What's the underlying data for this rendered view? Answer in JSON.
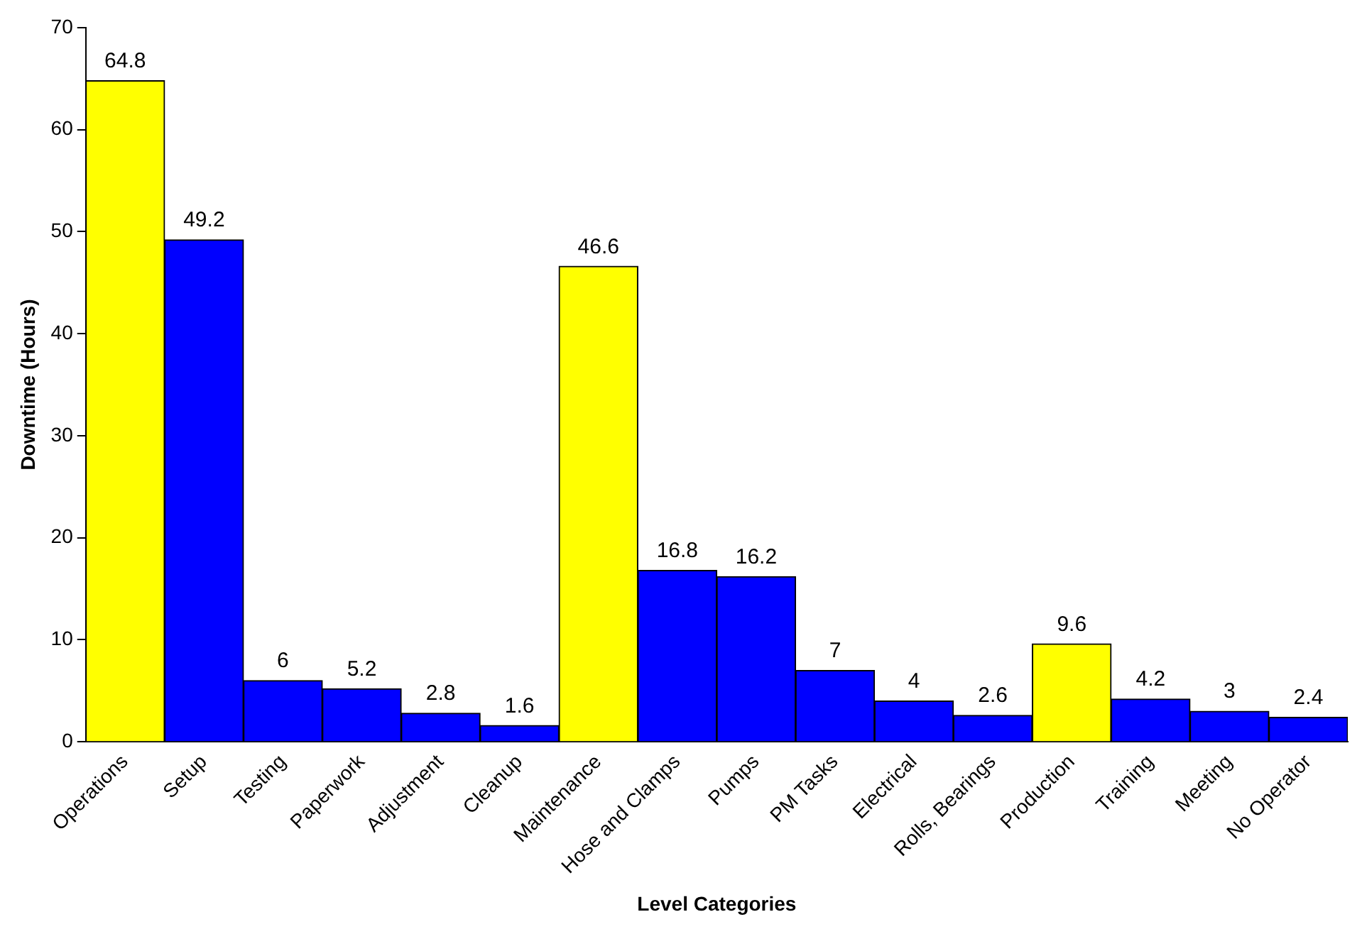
{
  "chart_data": {
    "type": "bar",
    "xlabel": "Level Categories",
    "ylabel": "Downtime (Hours)",
    "categories": [
      "Operations",
      "Setup",
      "Testing",
      "Paperwork",
      "Adjustment",
      "Cleanup",
      "Maintenance",
      "Hose and Clamps",
      "Pumps",
      "PM Tasks",
      "Electrical",
      "Rolls, Bearings",
      "Production",
      "Training",
      "Meeting",
      "No Operator"
    ],
    "values": [
      64.8,
      49.2,
      6,
      5.2,
      2.8,
      1.6,
      46.6,
      16.8,
      16.2,
      7,
      4,
      2.6,
      9.6,
      4.2,
      3,
      2.4
    ],
    "colors": [
      "#ffff00",
      "#0000ff",
      "#0000ff",
      "#0000ff",
      "#0000ff",
      "#0000ff",
      "#ffff00",
      "#0000ff",
      "#0000ff",
      "#0000ff",
      "#0000ff",
      "#0000ff",
      "#ffff00",
      "#0000ff",
      "#0000ff",
      "#0000ff"
    ],
    "ylim": [
      0,
      70
    ],
    "yticks": [
      0,
      10,
      20,
      30,
      40,
      50,
      60,
      70
    ],
    "grid": false,
    "legend": false,
    "data_labels": true
  }
}
